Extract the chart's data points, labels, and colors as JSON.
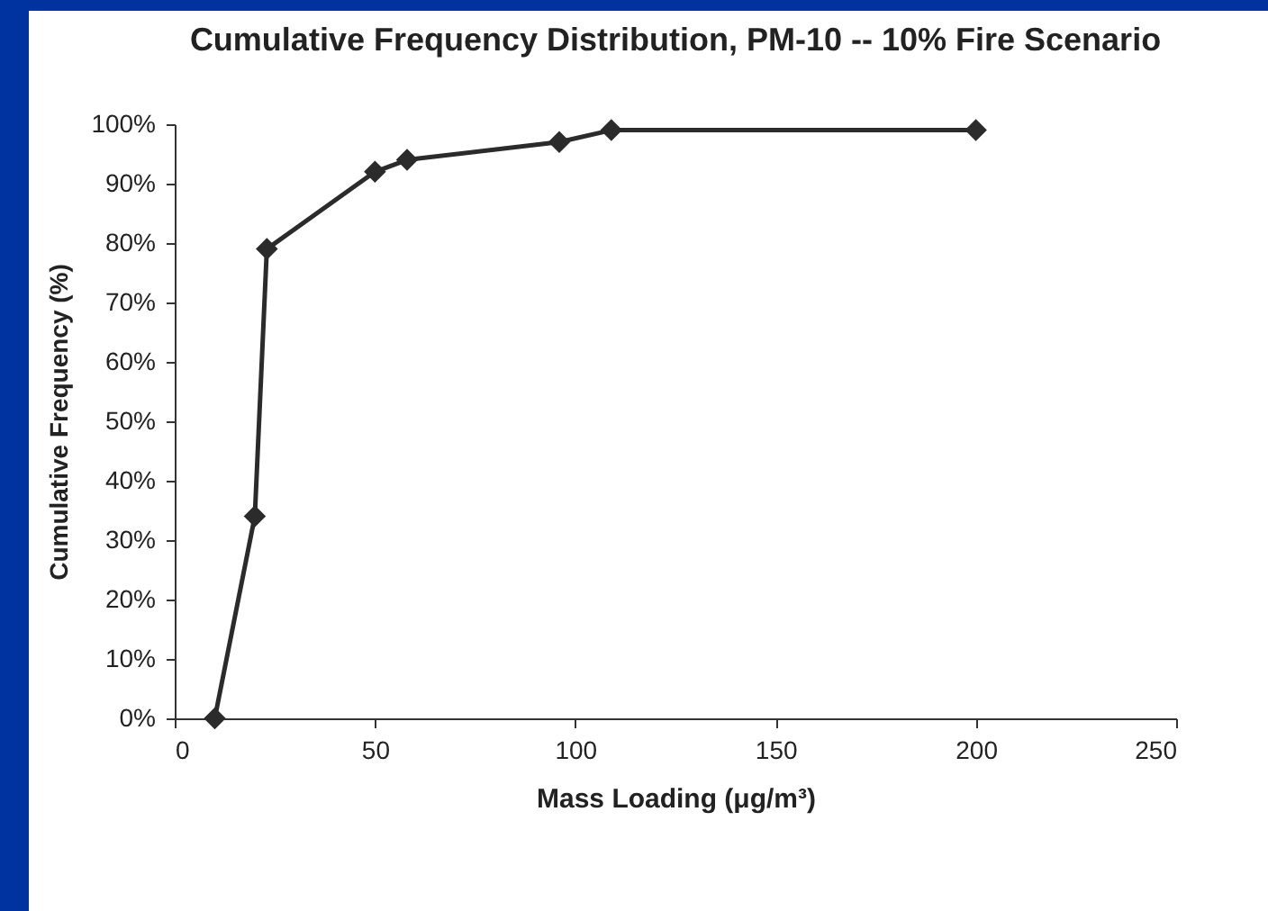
{
  "chart_data": {
    "type": "line",
    "title": "Cumulative Frequency Distribution, PM-10 -- 10% Fire Scenario",
    "xlabel": "Mass Loading (μg/m³)",
    "ylabel": "Cumulative Frequency (%)",
    "x": [
      10,
      20,
      23,
      50,
      58,
      96,
      109,
      200
    ],
    "series": [
      {
        "color": "#2b2b2b",
        "values": [
          0,
          34,
          79,
          92,
          94,
          97,
          99,
          99
        ]
      }
    ],
    "xlim": [
      0,
      250
    ],
    "xticks": [
      0,
      50,
      100,
      150,
      200,
      250
    ],
    "ylim": [
      0,
      100
    ],
    "yticks": [
      {
        "value": 0,
        "label": "0%"
      },
      {
        "value": 10,
        "label": "10%"
      },
      {
        "value": 20,
        "label": "20%"
      },
      {
        "value": 30,
        "label": "30%"
      },
      {
        "value": 40,
        "label": "40%"
      },
      {
        "value": 50,
        "label": "50%"
      },
      {
        "value": 60,
        "label": "60%"
      },
      {
        "value": 70,
        "label": "70%"
      },
      {
        "value": 80,
        "label": "80%"
      },
      {
        "value": 90,
        "label": "90%"
      },
      {
        "value": 100,
        "label": "100%"
      }
    ],
    "grid": false,
    "marker": "diamond",
    "line_style": "solid"
  }
}
